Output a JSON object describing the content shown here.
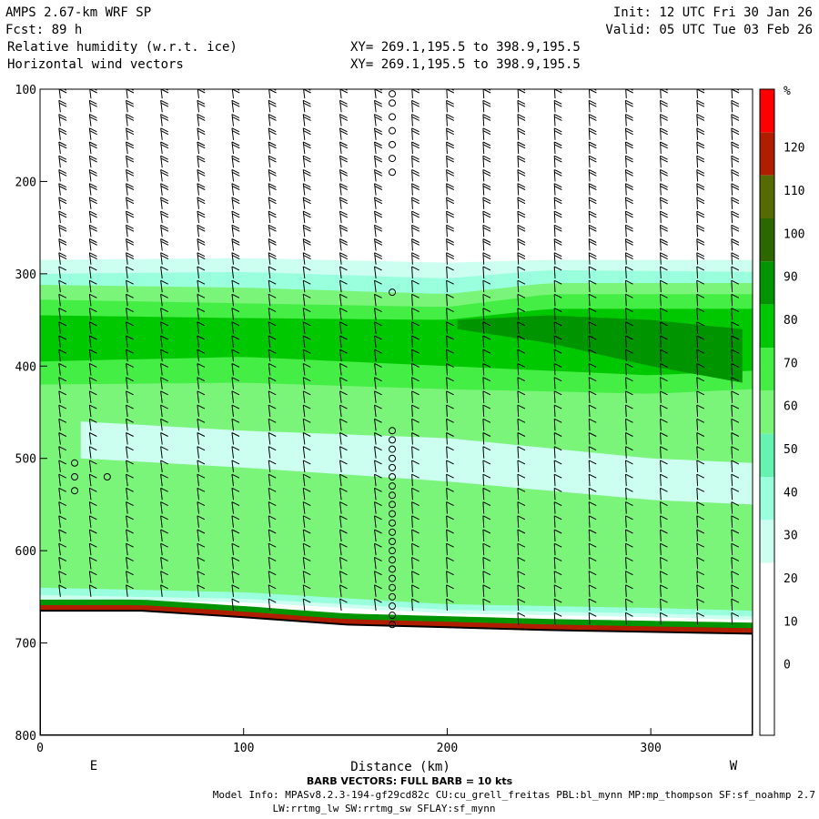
{
  "header": {
    "model": "AMPS 2.67-km WRF SP",
    "fcst": "Fcst:   89 h",
    "field1": "Relative humidity (w.r.t. ice)",
    "field2": "Horizontal wind vectors",
    "xy1": "XY= 269.1,195.5 to 398.9,195.5",
    "xy2": "XY= 269.1,195.5 to 398.9,195.5",
    "init": "Init: 12 UTC Fri 30 Jan 26",
    "valid": "Valid: 05 UTC Tue 03 Feb 26"
  },
  "footer": {
    "barb_note": "BARB VECTORS:  FULL BARB = 10 kts",
    "model_info": "Model Info: MPASv8.2.3-194-gf29cd82c CU:cu_grell_freitas PBL:bl_mynn MP:mp_thompson SF:sf_noahmp 2.7",
    "model_info2": "LW:rrtmg_lw SW:rrtmg_sw SFLAY:sf_mynn"
  },
  "chart_data": {
    "type": "heatmap",
    "title": "Relative humidity (w.r.t. ice)",
    "overlay": "Horizontal wind vectors",
    "xlabel": "Distance (km)",
    "ylabel": "",
    "x_range": [
      0,
      350
    ],
    "y_range": [
      800,
      100
    ],
    "x_ticks": [
      0,
      100,
      200,
      300
    ],
    "y_ticks": [
      100,
      200,
      300,
      400,
      500,
      600,
      700,
      800
    ],
    "x_end_labels": [
      "E",
      "W"
    ],
    "colorbar": {
      "unit": "%",
      "levels": [
        0,
        10,
        20,
        30,
        40,
        50,
        60,
        70,
        80,
        90,
        100,
        110,
        120
      ],
      "colors": [
        "#ffffff",
        "#ffffff",
        "#ffffff",
        "#ffffff",
        "#ccfff0",
        "#99ffdd",
        "#66f2b0",
        "#7af57a",
        "#44ee44",
        "#00c800",
        "#009400",
        "#2e6600",
        "#556b00",
        "#b01e00",
        "#ff0000"
      ]
    },
    "colorbar_labels": [
      "%",
      "120",
      "110",
      "100",
      "90",
      "80",
      "70",
      "60",
      "50",
      "40",
      "30",
      "20",
      "10",
      "0"
    ],
    "terrain": [
      [
        0,
        665
      ],
      [
        50,
        665
      ],
      [
        100,
        672
      ],
      [
        150,
        680
      ],
      [
        200,
        683
      ],
      [
        250,
        686
      ],
      [
        300,
        688
      ],
      [
        350,
        690
      ]
    ],
    "bands": [
      {
        "level": 30,
        "top": [
          [
            0,
            285
          ],
          [
            100,
            283
          ],
          [
            200,
            288
          ],
          [
            250,
            285
          ],
          [
            350,
            285
          ]
        ],
        "bottom": [
          [
            0,
            652
          ],
          [
            100,
            656
          ],
          [
            200,
            668
          ],
          [
            300,
            672
          ],
          [
            350,
            675
          ]
        ]
      },
      {
        "level": 40,
        "top": [
          [
            0,
            300
          ],
          [
            100,
            298
          ],
          [
            200,
            305
          ],
          [
            250,
            296
          ],
          [
            350,
            298
          ]
        ],
        "bottom": [
          [
            0,
            648
          ],
          [
            100,
            652
          ],
          [
            200,
            664
          ],
          [
            300,
            668
          ],
          [
            350,
            671
          ]
        ]
      },
      {
        "level": 60,
        "top": [
          [
            0,
            312
          ],
          [
            100,
            315
          ],
          [
            200,
            322
          ],
          [
            250,
            310
          ],
          [
            350,
            310
          ]
        ],
        "bottom": [
          [
            0,
            640
          ],
          [
            100,
            645
          ],
          [
            200,
            658
          ],
          [
            300,
            662
          ],
          [
            350,
            665
          ]
        ]
      },
      {
        "level": 70,
        "top": [
          [
            0,
            328
          ],
          [
            100,
            332
          ],
          [
            200,
            336
          ],
          [
            250,
            322
          ],
          [
            350,
            322
          ]
        ],
        "bottom": [
          [
            0,
            420
          ],
          [
            100,
            418
          ],
          [
            200,
            425
          ],
          [
            300,
            430
          ],
          [
            350,
            425
          ]
        ]
      },
      {
        "level": 80,
        "top": [
          [
            0,
            345
          ],
          [
            100,
            348
          ],
          [
            200,
            350
          ],
          [
            250,
            338
          ],
          [
            350,
            338
          ]
        ],
        "bottom": [
          [
            0,
            395
          ],
          [
            100,
            390
          ],
          [
            200,
            400
          ],
          [
            300,
            410
          ],
          [
            350,
            405
          ]
        ]
      },
      {
        "level": 90,
        "top": [
          [
            205,
            350
          ],
          [
            250,
            345
          ],
          [
            300,
            350
          ],
          [
            345,
            360
          ]
        ],
        "bottom": [
          [
            205,
            360
          ],
          [
            250,
            375
          ],
          [
            300,
            400
          ],
          [
            345,
            418
          ]
        ]
      }
    ],
    "dry_slot": {
      "top": [
        [
          20,
          460
        ],
        [
          100,
          470
        ],
        [
          200,
          478
        ],
        [
          300,
          500
        ],
        [
          350,
          505
        ]
      ],
      "bottom": [
        [
          20,
          500
        ],
        [
          100,
          510
        ],
        [
          200,
          525
        ],
        [
          300,
          545
        ],
        [
          350,
          550
        ]
      ]
    },
    "calm_points_x": [
      173,
      17,
      33
    ],
    "barb_columns_x": [
      10,
      25,
      43,
      60,
      78,
      95,
      113,
      130,
      148,
      165,
      183,
      200,
      218,
      235,
      253,
      270,
      288,
      305,
      323,
      340
    ]
  }
}
